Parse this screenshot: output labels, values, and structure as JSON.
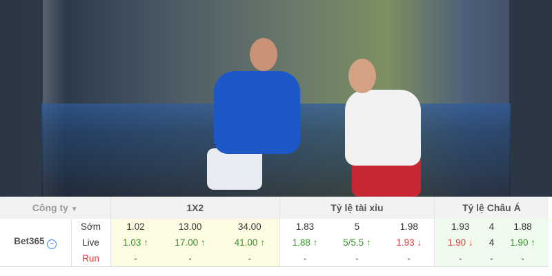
{
  "table": {
    "headers": {
      "company": "Công ty",
      "company_arrow": "▼",
      "x12": "1X2",
      "overunder": "Tỷ lệ tài xỉu",
      "asian": "Tỷ lệ Châu Á"
    },
    "bookmaker": "Bet365",
    "bookmaker_icon": "trend-chart-icon",
    "rows": [
      {
        "label": "Sớm",
        "x12": [
          "1.02",
          "13.00",
          "34.00"
        ],
        "overunder": [
          "1.83",
          "5",
          "1.98"
        ],
        "asian": [
          "1.93",
          "4",
          "1.88"
        ]
      },
      {
        "label": "Live",
        "x12": [
          "1.03 ↑",
          "17.00 ↑",
          "41.00 ↑"
        ],
        "overunder": [
          "1.88 ↑",
          "5/5.5 ↑",
          "1.93 ↓"
        ],
        "asian": [
          "1.90 ↓",
          "4",
          "1.90 ↑"
        ]
      },
      {
        "label": "Run",
        "x12": [
          "-",
          "-",
          "-"
        ],
        "overunder": [
          "-",
          "-",
          "-"
        ],
        "asian": [
          "-",
          "-",
          "-"
        ]
      }
    ]
  },
  "colors": {
    "up": "#3a8f2a",
    "down": "#e53935",
    "x12_bg": "#fdfbe2",
    "asian_bg": "#eefbee"
  }
}
